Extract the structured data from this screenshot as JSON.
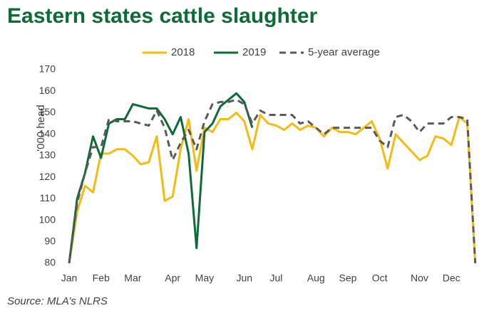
{
  "chart_data": {
    "type": "line",
    "title": "Eastern states cattle slaughter",
    "ylabel": "'000 head",
    "source": "Source: MLA’s NLRS",
    "categories": [
      "Jan",
      null,
      null,
      null,
      "Feb",
      null,
      null,
      null,
      "Mar",
      null,
      null,
      null,
      null,
      "Apr",
      null,
      null,
      null,
      "May",
      null,
      null,
      null,
      null,
      "Jun",
      null,
      null,
      null,
      "Jul",
      null,
      null,
      null,
      null,
      "Aug",
      null,
      null,
      null,
      "Sep",
      null,
      null,
      null,
      "Oct",
      null,
      null,
      null,
      null,
      "Nov",
      null,
      null,
      null,
      "Dec",
      null,
      null,
      null
    ],
    "series": [
      {
        "name": "2018",
        "color": "#f2bc13",
        "style": "solid",
        "values": [
          80,
          104,
          116,
          113,
          131,
          131,
          133,
          133,
          130,
          126,
          127,
          139,
          109,
          111,
          133,
          147,
          123,
          143,
          141,
          147,
          147,
          150,
          146,
          133,
          149,
          145,
          144,
          142,
          145,
          142,
          144,
          143,
          139,
          143,
          141,
          141,
          140,
          143,
          146,
          138,
          124,
          140,
          136,
          132,
          128,
          130,
          139,
          138,
          135,
          148,
          145,
          80
        ]
      },
      {
        "name": "2019",
        "color": "#0d6b38",
        "style": "solid",
        "values": [
          80,
          110,
          122,
          139,
          129,
          145,
          147,
          147,
          154,
          153,
          152,
          152,
          147,
          140,
          148,
          131,
          87,
          141,
          145,
          153,
          156,
          159,
          155,
          143,
          null,
          null,
          null,
          null,
          null,
          null,
          null,
          null,
          null,
          null,
          null,
          null,
          null,
          null,
          null,
          null,
          null,
          null,
          null,
          null,
          null,
          null,
          null,
          null,
          null,
          null,
          null,
          null
        ]
      },
      {
        "name": "5-year average",
        "color": "#595959",
        "style": "dashed",
        "values": [
          80,
          108,
          122,
          134,
          134,
          147,
          146,
          146,
          146,
          145,
          144,
          151,
          143,
          128,
          136,
          142,
          133,
          146,
          154,
          155,
          155,
          156,
          154,
          145,
          151,
          149,
          149,
          149,
          149,
          145,
          146,
          143,
          140,
          143,
          143,
          143,
          143,
          143,
          143,
          137,
          134,
          148,
          149,
          146,
          141,
          145,
          145,
          145,
          148,
          148,
          147,
          80
        ]
      }
    ],
    "ylim": [
      80,
      170
    ],
    "yticks": [
      80,
      90,
      100,
      110,
      120,
      130,
      140,
      150,
      160,
      170
    ],
    "grid": false,
    "legend": "top"
  }
}
